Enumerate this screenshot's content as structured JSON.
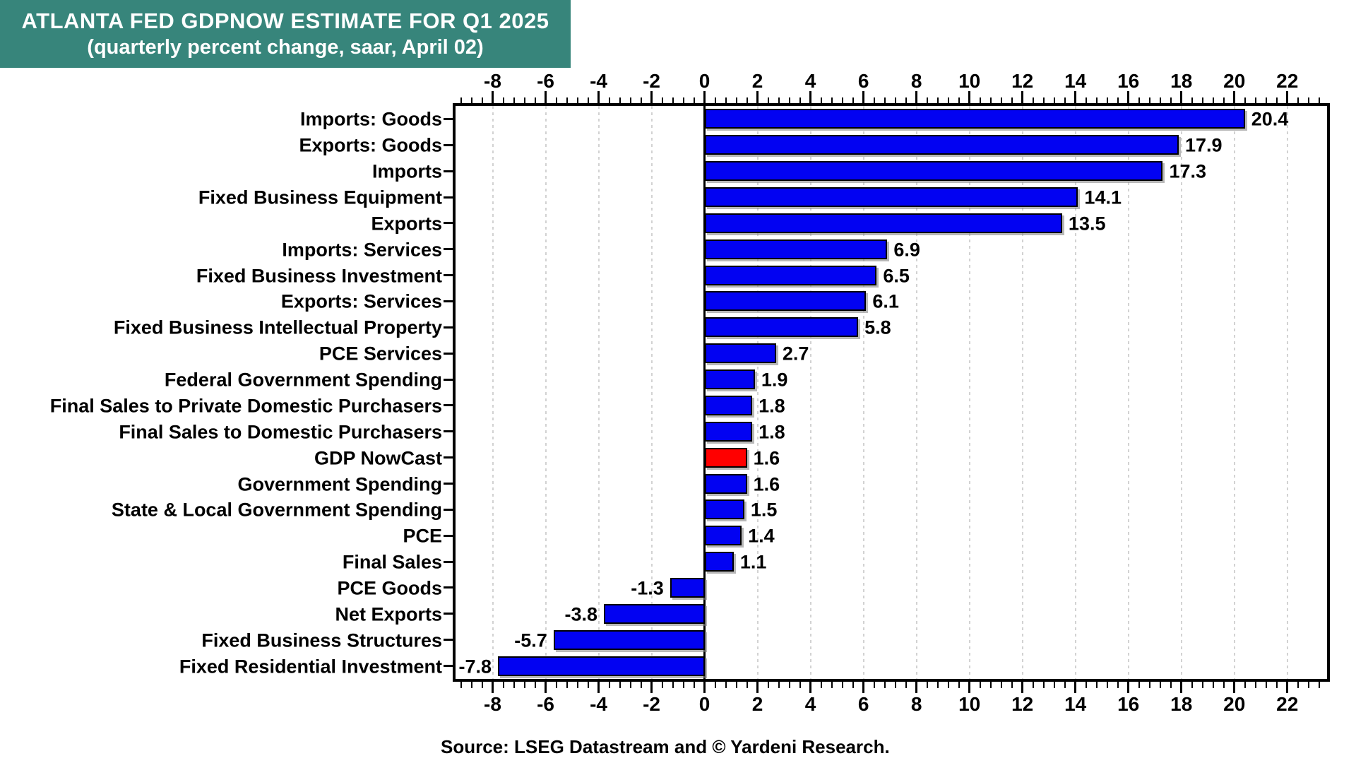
{
  "title": {
    "line1": "ATLANTA FED GDPNOW ESTIMATE FOR Q1 2025",
    "line2": "(quarterly percent change, saar, April 02)"
  },
  "source_note": "Source: LSEG Datastream and © Yardeni Research.",
  "colors": {
    "title_bg": "#37857B",
    "title_text": "#FFFFFF",
    "bar_blue": "#0202F2",
    "bar_highlight_red": "#FF0000",
    "gridline": "#D2D2D2",
    "axis_frame": "#000000"
  },
  "chart_data": {
    "type": "bar",
    "orientation": "horizontal",
    "title": "ATLANTA FED GDPNOW ESTIMATE FOR Q1 2025",
    "subtitle": "(quarterly percent change, saar, April 02)",
    "categories": [
      "Imports: Goods",
      "Exports: Goods",
      "Imports",
      "Fixed Business Equipment",
      "Exports",
      "Imports: Services",
      "Fixed Business Investment",
      "Exports: Services",
      "Fixed Business Intellectual Property",
      "PCE Services",
      "Federal Government Spending",
      "Final Sales to Private Domestic Purchasers",
      "Final Sales to Domestic Purchasers",
      "GDP NowCast",
      "Government Spending",
      "State & Local Government Spending",
      "PCE",
      "Final Sales",
      "PCE Goods",
      "Net Exports",
      "Fixed Business Structures",
      "Fixed Residential Investment"
    ],
    "values": [
      20.4,
      17.9,
      17.3,
      14.1,
      13.5,
      6.9,
      6.5,
      6.1,
      5.8,
      2.7,
      1.9,
      1.8,
      1.8,
      1.6,
      1.6,
      1.5,
      1.4,
      1.1,
      -1.3,
      -3.8,
      -5.7,
      -7.8
    ],
    "value_labels": [
      "20.4",
      "17.9",
      "17.3",
      "14.1",
      "13.5",
      "6.9",
      "6.5",
      "6.1",
      "5.8",
      "2.7",
      "1.9",
      "1.8",
      "1.8",
      "1.6",
      "1.6",
      "1.5",
      "1.4",
      "1.1",
      "-1.3",
      "-3.8",
      "-5.7",
      "-7.8"
    ],
    "highlight_index": 13,
    "xlim": [
      -9.4,
      23.5
    ],
    "x_tick_values": [
      -8,
      -6,
      -4,
      -2,
      0,
      2,
      4,
      6,
      8,
      10,
      12,
      14,
      16,
      18,
      20,
      22
    ],
    "x_tick_labels": [
      "-8",
      "-6",
      "-4",
      "-2",
      "0",
      "2",
      "4",
      "6",
      "8",
      "10",
      "12",
      "14",
      "16",
      "18",
      "20",
      "22"
    ],
    "minor_tick_step": 0.4,
    "grid": "dotted vertical gridlines at major ticks, solid black line at zero",
    "legend": false,
    "axis_label_positions": "top and bottom",
    "ylabel": "",
    "xlabel": ""
  }
}
